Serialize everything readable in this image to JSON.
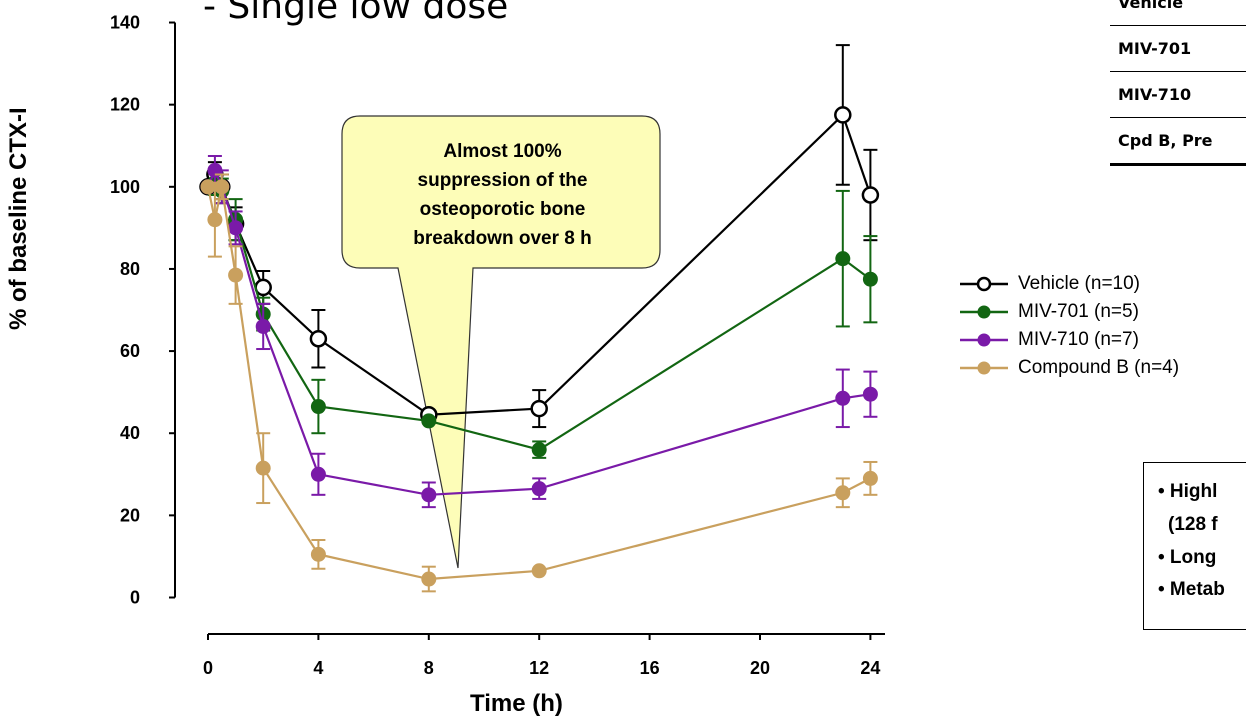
{
  "subtitle": "- Single low dose",
  "chart_data": {
    "type": "line",
    "ylabel": "% of baseline CTX-I",
    "xlabel": "Time (h)",
    "xlim": [
      0,
      25
    ],
    "ylim": [
      0,
      140
    ],
    "xticks": [
      0,
      4,
      8,
      12,
      16,
      20,
      24
    ],
    "yticks": [
      0,
      20,
      40,
      60,
      80,
      100,
      120,
      140
    ],
    "series": [
      {
        "name": "Vehicle (n=10)",
        "color": "#000000",
        "marker": "open-circle",
        "points": [
          {
            "x": 0,
            "y": 100,
            "err": 0
          },
          {
            "x": 0.25,
            "y": 103,
            "err": 3
          },
          {
            "x": 0.5,
            "y": 100,
            "err": 3
          },
          {
            "x": 1,
            "y": 91,
            "err": 4
          },
          {
            "x": 2,
            "y": 75.5,
            "err": 4
          },
          {
            "x": 4,
            "y": 63,
            "err": 7
          },
          {
            "x": 8,
            "y": 44.5,
            "err": 0
          },
          {
            "x": 12,
            "y": 46,
            "err": 4.5
          },
          {
            "x": 23,
            "y": 117.5,
            "err": 17
          },
          {
            "x": 24,
            "y": 98,
            "err": 11
          }
        ]
      },
      {
        "name": "MIV-701 (n=5)",
        "color": "#126612",
        "marker": "filled-circle",
        "points": [
          {
            "x": 0,
            "y": 100,
            "err": 0
          },
          {
            "x": 0.25,
            "y": 101,
            "err": 3
          },
          {
            "x": 0.5,
            "y": 99,
            "err": 3
          },
          {
            "x": 1,
            "y": 92,
            "err": 5
          },
          {
            "x": 2,
            "y": 69,
            "err": 4
          },
          {
            "x": 4,
            "y": 46.5,
            "err": 6.5
          },
          {
            "x": 8,
            "y": 43,
            "err": 0
          },
          {
            "x": 12,
            "y": 36,
            "err": 2
          },
          {
            "x": 23,
            "y": 82.5,
            "err": 16.5
          },
          {
            "x": 24,
            "y": 77.5,
            "err": 10.5
          }
        ]
      },
      {
        "name": "MIV-710 (n=7)",
        "color": "#7a1aa8",
        "marker": "filled-circle",
        "points": [
          {
            "x": 0,
            "y": 100,
            "err": 0
          },
          {
            "x": 0.25,
            "y": 104,
            "err": 3.5
          },
          {
            "x": 0.5,
            "y": 100,
            "err": 4
          },
          {
            "x": 1,
            "y": 90,
            "err": 4
          },
          {
            "x": 2,
            "y": 66,
            "err": 5.5
          },
          {
            "x": 4,
            "y": 30,
            "err": 5
          },
          {
            "x": 8,
            "y": 25,
            "err": 3
          },
          {
            "x": 12,
            "y": 26.5,
            "err": 2.5
          },
          {
            "x": 23,
            "y": 48.5,
            "err": 7
          },
          {
            "x": 24,
            "y": 49.5,
            "err": 5.5
          }
        ]
      },
      {
        "name": "Compound B (n=4)",
        "color": "#c9a05e",
        "marker": "filled-circle",
        "points": [
          {
            "x": 0,
            "y": 100,
            "err": 0
          },
          {
            "x": 0.25,
            "y": 92,
            "err": 9
          },
          {
            "x": 0.5,
            "y": 100,
            "err": 3
          },
          {
            "x": 1,
            "y": 78.5,
            "err": 7
          },
          {
            "x": 2,
            "y": 31.5,
            "err": 8.5
          },
          {
            "x": 4,
            "y": 10.5,
            "err": 3.5
          },
          {
            "x": 8,
            "y": 4.5,
            "err": 3
          },
          {
            "x": 12,
            "y": 6.5,
            "err": 0
          },
          {
            "x": 23,
            "y": 25.5,
            "err": 3.5
          },
          {
            "x": 24,
            "y": 29,
            "err": 4
          }
        ]
      }
    ],
    "annotation": [
      "Almost 100%",
      "suppression of the",
      "osteoporotic bone",
      "breakdown over 8 h"
    ]
  },
  "legend": [
    "Vehicle (n=10)",
    "MIV-701 (n=5)",
    "MIV-710 (n=7)",
    "Compound B (n=4)"
  ],
  "table": {
    "rows": [
      "Vehicle",
      "MIV-701",
      "MIV-710",
      "Cpd B, Pre"
    ]
  },
  "notes": [
    "• Highl",
    "(128 f",
    "• Long",
    "• Metab"
  ]
}
